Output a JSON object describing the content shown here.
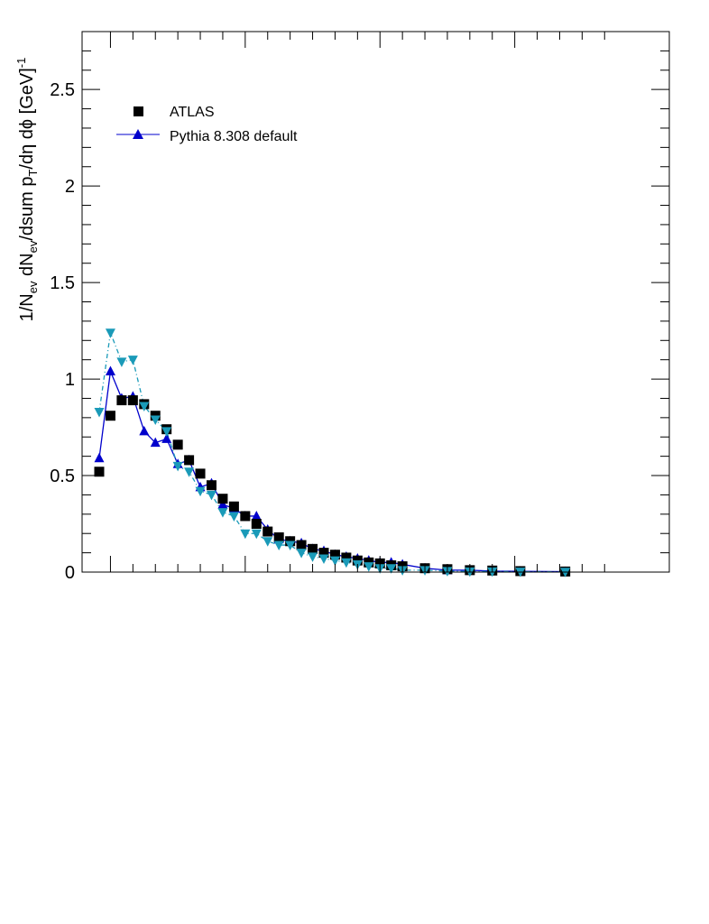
{
  "chart_data": {
    "type": "scatter",
    "title": "",
    "xlabel": "",
    "ylabel": {
      "main": "1/N",
      "sub1": "ev",
      "mid1": " dN",
      "sub2": "ev",
      "mid2": "/dsum p",
      "sub3": "T",
      "mid3": "/dη dϕ  [GeV]",
      "sup": "-1"
    },
    "ylim": [
      0,
      2.8
    ],
    "xlim": [
      0,
      23.6
    ],
    "y_ticks": [
      "0",
      "0.5",
      "1",
      "1.5",
      "2",
      "2.5"
    ],
    "y_tick_values": [
      0,
      0.5,
      1,
      1.5,
      2,
      2.5
    ],
    "grid": false,
    "legend_placement": "top-left",
    "series": [
      {
        "name": "ATLAS",
        "color": "#000000",
        "marker": "square",
        "x": [
          0.5,
          1,
          1.5,
          2,
          2.5,
          3,
          3.5,
          4,
          4.5,
          5,
          5.5,
          6,
          6.5,
          7,
          7.5,
          8,
          8.5,
          9,
          9.5,
          10,
          10.5,
          11,
          11.5,
          12,
          12.5,
          13,
          13.5,
          14,
          15,
          16,
          17,
          18,
          19.25,
          21.25
        ],
        "values": [
          0.52,
          0.81,
          0.89,
          0.89,
          0.87,
          0.81,
          0.74,
          0.66,
          0.58,
          0.51,
          0.45,
          0.38,
          0.34,
          0.29,
          0.25,
          0.21,
          0.18,
          0.16,
          0.14,
          0.12,
          0.1,
          0.09,
          0.075,
          0.06,
          0.05,
          0.045,
          0.035,
          0.03,
          0.02,
          0.015,
          0.01,
          0.008,
          0.005,
          0.003
        ]
      },
      {
        "name": "Pythia 8.308 default",
        "color": "#0000cc",
        "marker": "triangle-up",
        "x": [
          0.5,
          1,
          1.5,
          2,
          2.5,
          3,
          3.5,
          4,
          4.5,
          5,
          5.5,
          6,
          6.5,
          7,
          7.5,
          8,
          8.5,
          9,
          9.5,
          10,
          10.5,
          11,
          11.5,
          12,
          12.5,
          13,
          13.5,
          14,
          15,
          16,
          17,
          18,
          19.25,
          21.25
        ],
        "values": [
          0.59,
          1.04,
          0.9,
          0.91,
          0.73,
          0.67,
          0.69,
          0.56,
          0.58,
          0.44,
          0.46,
          0.35,
          0.33,
          0.29,
          0.29,
          0.22,
          0.17,
          0.16,
          0.15,
          0.12,
          0.11,
          0.09,
          0.08,
          0.07,
          0.06,
          0.05,
          0.05,
          0.04,
          0.02,
          0.01,
          0.01,
          0.005,
          0.004,
          0.002
        ]
      },
      {
        "name": "",
        "color": "#1a9ab8",
        "marker": "triangle-down",
        "dashed": true,
        "x": [
          0.5,
          1,
          1.5,
          2,
          2.5,
          3,
          3.5,
          4,
          4.5,
          5,
          5.5,
          6,
          6.5,
          7,
          7.5,
          8,
          8.5,
          9,
          9.5,
          10,
          10.5,
          11,
          11.5,
          12,
          12.5,
          13,
          13.5,
          14,
          15,
          16,
          17,
          18,
          19.25,
          21.25
        ],
        "values": [
          0.83,
          1.24,
          1.09,
          1.1,
          0.86,
          0.79,
          0.73,
          0.55,
          0.52,
          0.42,
          0.4,
          0.31,
          0.29,
          0.2,
          0.2,
          0.16,
          0.14,
          0.14,
          0.1,
          0.08,
          0.07,
          0.06,
          0.05,
          0.04,
          0.03,
          0.02,
          0.02,
          0.01,
          0.01,
          0.005,
          0.003,
          0.003,
          0.002,
          0.001
        ]
      }
    ]
  }
}
